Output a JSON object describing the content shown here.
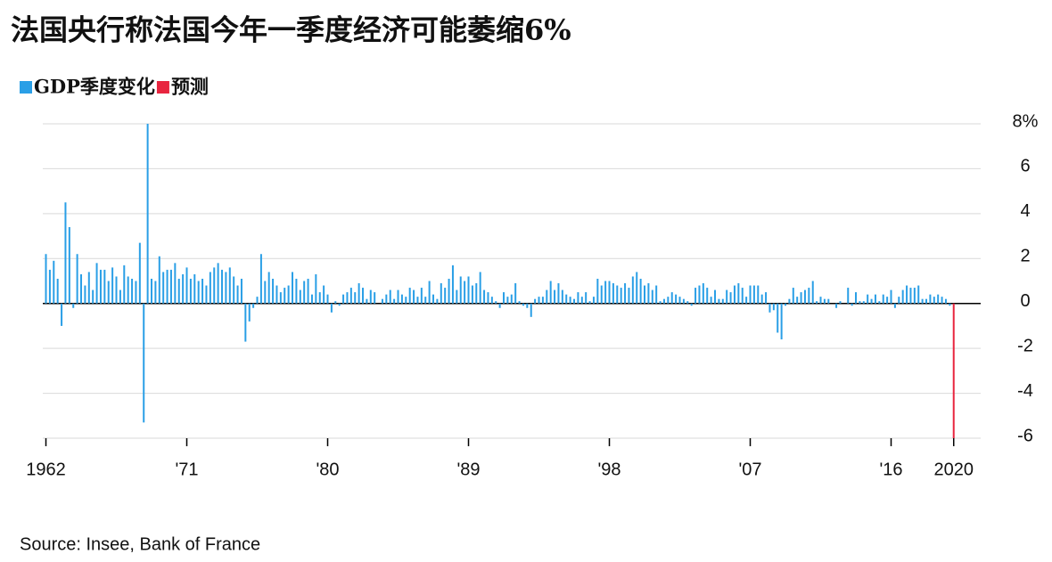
{
  "chart_data": {
    "type": "bar",
    "title": "法国央行称法国今年一季度经济可能萎缩6%",
    "source": "Source: Insee, Bank of France",
    "series": [
      {
        "name": "GDP季度变化",
        "color": "#2a9fe6",
        "x": [
          1962,
          1962.25,
          1962.5,
          1962.75,
          1963,
          1963.25,
          1963.5,
          1963.75,
          1964,
          1964.25,
          1964.5,
          1964.75,
          1965,
          1965.25,
          1965.5,
          1965.75,
          1966,
          1966.25,
          1966.5,
          1966.75,
          1967,
          1967.25,
          1967.5,
          1967.75,
          1968,
          1968.25,
          1968.5,
          1968.75,
          1969,
          1969.25,
          1969.5,
          1969.75,
          1970,
          1970.25,
          1970.5,
          1970.75,
          1971,
          1971.25,
          1971.5,
          1971.75,
          1972,
          1972.25,
          1972.5,
          1972.75,
          1973,
          1973.25,
          1973.5,
          1973.75,
          1974,
          1974.25,
          1974.5,
          1974.75,
          1975,
          1975.25,
          1975.5,
          1975.75,
          1976,
          1976.25,
          1976.5,
          1976.75,
          1977,
          1977.25,
          1977.5,
          1977.75,
          1978,
          1978.25,
          1978.5,
          1978.75,
          1979,
          1979.25,
          1979.5,
          1979.75,
          1980,
          1980.25,
          1980.5,
          1980.75,
          1981,
          1981.25,
          1981.5,
          1981.75,
          1982,
          1982.25,
          1982.5,
          1982.75,
          1983,
          1983.25,
          1983.5,
          1983.75,
          1984,
          1984.25,
          1984.5,
          1984.75,
          1985,
          1985.25,
          1985.5,
          1985.75,
          1986,
          1986.25,
          1986.5,
          1986.75,
          1987,
          1987.25,
          1987.5,
          1987.75,
          1988,
          1988.25,
          1988.5,
          1988.75,
          1989,
          1989.25,
          1989.5,
          1989.75,
          1990,
          1990.25,
          1990.5,
          1990.75,
          1991,
          1991.25,
          1991.5,
          1991.75,
          1992,
          1992.25,
          1992.5,
          1992.75,
          1993,
          1993.25,
          1993.5,
          1993.75,
          1994,
          1994.25,
          1994.5,
          1994.75,
          1995,
          1995.25,
          1995.5,
          1995.75,
          1996,
          1996.25,
          1996.5,
          1996.75,
          1997,
          1997.25,
          1997.5,
          1997.75,
          1998,
          1998.25,
          1998.5,
          1998.75,
          1999,
          1999.25,
          1999.5,
          1999.75,
          2000,
          2000.25,
          2000.5,
          2000.75,
          2001,
          2001.25,
          2001.5,
          2001.75,
          2002,
          2002.25,
          2002.5,
          2002.75,
          2003,
          2003.25,
          2003.5,
          2003.75,
          2004,
          2004.25,
          2004.5,
          2004.75,
          2005,
          2005.25,
          2005.5,
          2005.75,
          2006,
          2006.25,
          2006.5,
          2006.75,
          2007,
          2007.25,
          2007.5,
          2007.75,
          2008,
          2008.25,
          2008.5,
          2008.75,
          2009,
          2009.25,
          2009.5,
          2009.75,
          2010,
          2010.25,
          2010.5,
          2010.75,
          2011,
          2011.25,
          2011.5,
          2011.75,
          2012,
          2012.25,
          2012.5,
          2012.75,
          2013,
          2013.25,
          2013.5,
          2013.75,
          2014,
          2014.25,
          2014.5,
          2014.75,
          2015,
          2015.25,
          2015.5,
          2015.75,
          2016,
          2016.25,
          2016.5,
          2016.75,
          2017,
          2017.25,
          2017.5,
          2017.75,
          2018,
          2018.25,
          2018.5,
          2018.75,
          2019,
          2019.25,
          2019.5,
          2019.75
        ],
        "values": [
          2.2,
          1.5,
          1.9,
          1.1,
          -1.0,
          4.5,
          3.4,
          -0.2,
          2.2,
          1.3,
          0.8,
          1.4,
          0.6,
          1.8,
          1.5,
          1.5,
          1.0,
          1.6,
          1.2,
          0.6,
          1.7,
          1.2,
          1.1,
          1.0,
          2.7,
          -5.3,
          8.0,
          1.1,
          1.0,
          2.1,
          1.4,
          1.5,
          1.5,
          1.8,
          1.1,
          1.3,
          1.6,
          1.1,
          1.3,
          1.0,
          1.1,
          0.8,
          1.4,
          1.6,
          1.8,
          1.5,
          1.4,
          1.6,
          1.2,
          0.8,
          1.1,
          -1.7,
          -0.8,
          -0.2,
          0.3,
          2.2,
          1.0,
          1.4,
          1.1,
          0.8,
          0.5,
          0.7,
          0.8,
          1.4,
          1.1,
          0.6,
          1.0,
          1.1,
          0.4,
          1.3,
          0.5,
          0.8,
          0.4,
          -0.4,
          0.1,
          -0.1,
          0.4,
          0.5,
          0.7,
          0.5,
          0.9,
          0.7,
          0.2,
          0.6,
          0.5,
          0.0,
          0.2,
          0.4,
          0.6,
          0.2,
          0.6,
          0.4,
          0.3,
          0.7,
          0.6,
          0.3,
          0.7,
          0.3,
          1.0,
          0.4,
          0.2,
          0.9,
          0.7,
          1.1,
          1.7,
          0.6,
          1.2,
          1.0,
          1.2,
          0.8,
          0.9,
          1.4,
          0.6,
          0.5,
          0.3,
          0.1,
          -0.2,
          0.5,
          0.3,
          0.4,
          0.9,
          0.1,
          -0.1,
          -0.2,
          -0.6,
          0.2,
          0.3,
          0.3,
          0.6,
          1.0,
          0.6,
          0.9,
          0.6,
          0.4,
          0.3,
          0.2,
          0.5,
          0.3,
          0.5,
          0.1,
          0.3,
          1.1,
          0.8,
          1.0,
          1.0,
          0.9,
          0.8,
          0.7,
          0.9,
          0.7,
          1.2,
          1.4,
          1.1,
          0.8,
          0.9,
          0.6,
          0.8,
          0.1,
          0.2,
          0.3,
          0.5,
          0.4,
          0.3,
          0.2,
          0.1,
          -0.1,
          0.7,
          0.8,
          0.9,
          0.7,
          0.3,
          0.6,
          0.2,
          0.2,
          0.6,
          0.5,
          0.8,
          0.9,
          0.7,
          0.3,
          0.8,
          0.8,
          0.8,
          0.4,
          0.5,
          -0.4,
          -0.3,
          -1.3,
          -1.6,
          -0.1,
          0.2,
          0.7,
          0.3,
          0.5,
          0.6,
          0.7,
          1.0,
          0.1,
          0.3,
          0.2,
          0.2,
          0.0,
          -0.2,
          0.1,
          0.0,
          0.7,
          -0.1,
          0.5,
          0.1,
          0.1,
          0.4,
          0.2,
          0.4,
          0.1,
          0.4,
          0.3,
          0.6,
          -0.2,
          0.3,
          0.6,
          0.8,
          0.7,
          0.7,
          0.8,
          0.2,
          0.2,
          0.4,
          0.3,
          0.4,
          0.3,
          0.2,
          -0.1
        ]
      },
      {
        "name": "预测",
        "color": "#e8253f",
        "x": [
          2020
        ],
        "values": [
          -6.0
        ]
      }
    ],
    "xlim": [
      1961.8,
      2020.3
    ],
    "xticks": [
      1962,
      {
        "value": 1971,
        "label": "'71"
      },
      {
        "value": 1980,
        "label": "'80"
      },
      {
        "value": 1989,
        "label": "'89"
      },
      {
        "value": 1998,
        "label": "'98"
      },
      {
        "value": 2007,
        "label": "'07"
      },
      {
        "value": 2016,
        "label": "'16"
      },
      2020
    ],
    "ylim": [
      -6,
      8
    ],
    "yticks": [
      {
        "value": 8,
        "label": "8%"
      },
      6,
      4,
      2,
      0,
      -2,
      -4,
      -6
    ],
    "grid": true
  }
}
